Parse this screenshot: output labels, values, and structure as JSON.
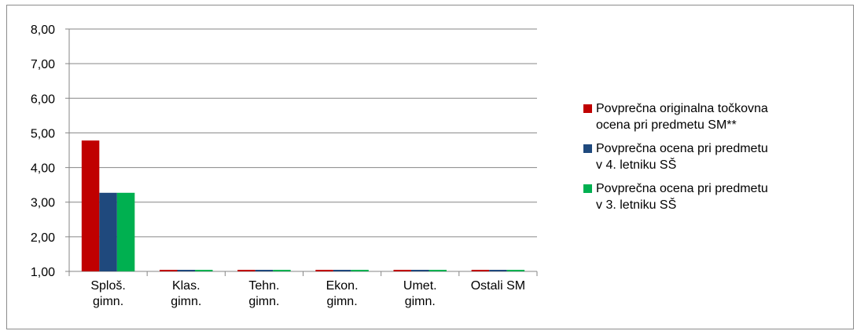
{
  "chart_data": {
    "type": "bar",
    "categories": [
      [
        "Sploš.",
        "gimn."
      ],
      [
        "Klas.",
        "gimn."
      ],
      [
        "Tehn.",
        "gimn."
      ],
      [
        "Ekon.",
        "gimn."
      ],
      [
        "Umet.",
        "gimn."
      ],
      [
        "Ostali SM"
      ]
    ],
    "series": [
      {
        "name": "Povprečna originalna točkovna ocena pri predmetu SM**",
        "color": "#c00000",
        "values": [
          4.78,
          1.0,
          1.0,
          1.0,
          1.0,
          1.0
        ]
      },
      {
        "name": "Povprečna ocena pri predmetu v 4. letniku SŠ",
        "color": "#1f497d",
        "values": [
          3.27,
          1.0,
          1.0,
          1.0,
          1.0,
          1.0
        ]
      },
      {
        "name": "Povprečna ocena pri predmetu v 3. letniku SŠ",
        "color": "#00b050",
        "values": [
          3.27,
          1.0,
          1.0,
          1.0,
          1.0,
          1.0
        ]
      }
    ],
    "yticks": [
      "1,00",
      "2,00",
      "3,00",
      "4,00",
      "5,00",
      "6,00",
      "7,00",
      "8,00"
    ],
    "ylim": [
      1,
      8
    ],
    "grid": true,
    "legend": "right",
    "legend_lines": [
      [
        "Povprečna originalna točkovna",
        "ocena pri predmetu SM**"
      ],
      [
        "Povprečna ocena pri predmetu",
        "v 4. letniku SŠ"
      ],
      [
        "Povprečna ocena pri predmetu",
        "v 3. letniku SŠ"
      ]
    ],
    "title": "",
    "xlabel": "",
    "ylabel": ""
  }
}
